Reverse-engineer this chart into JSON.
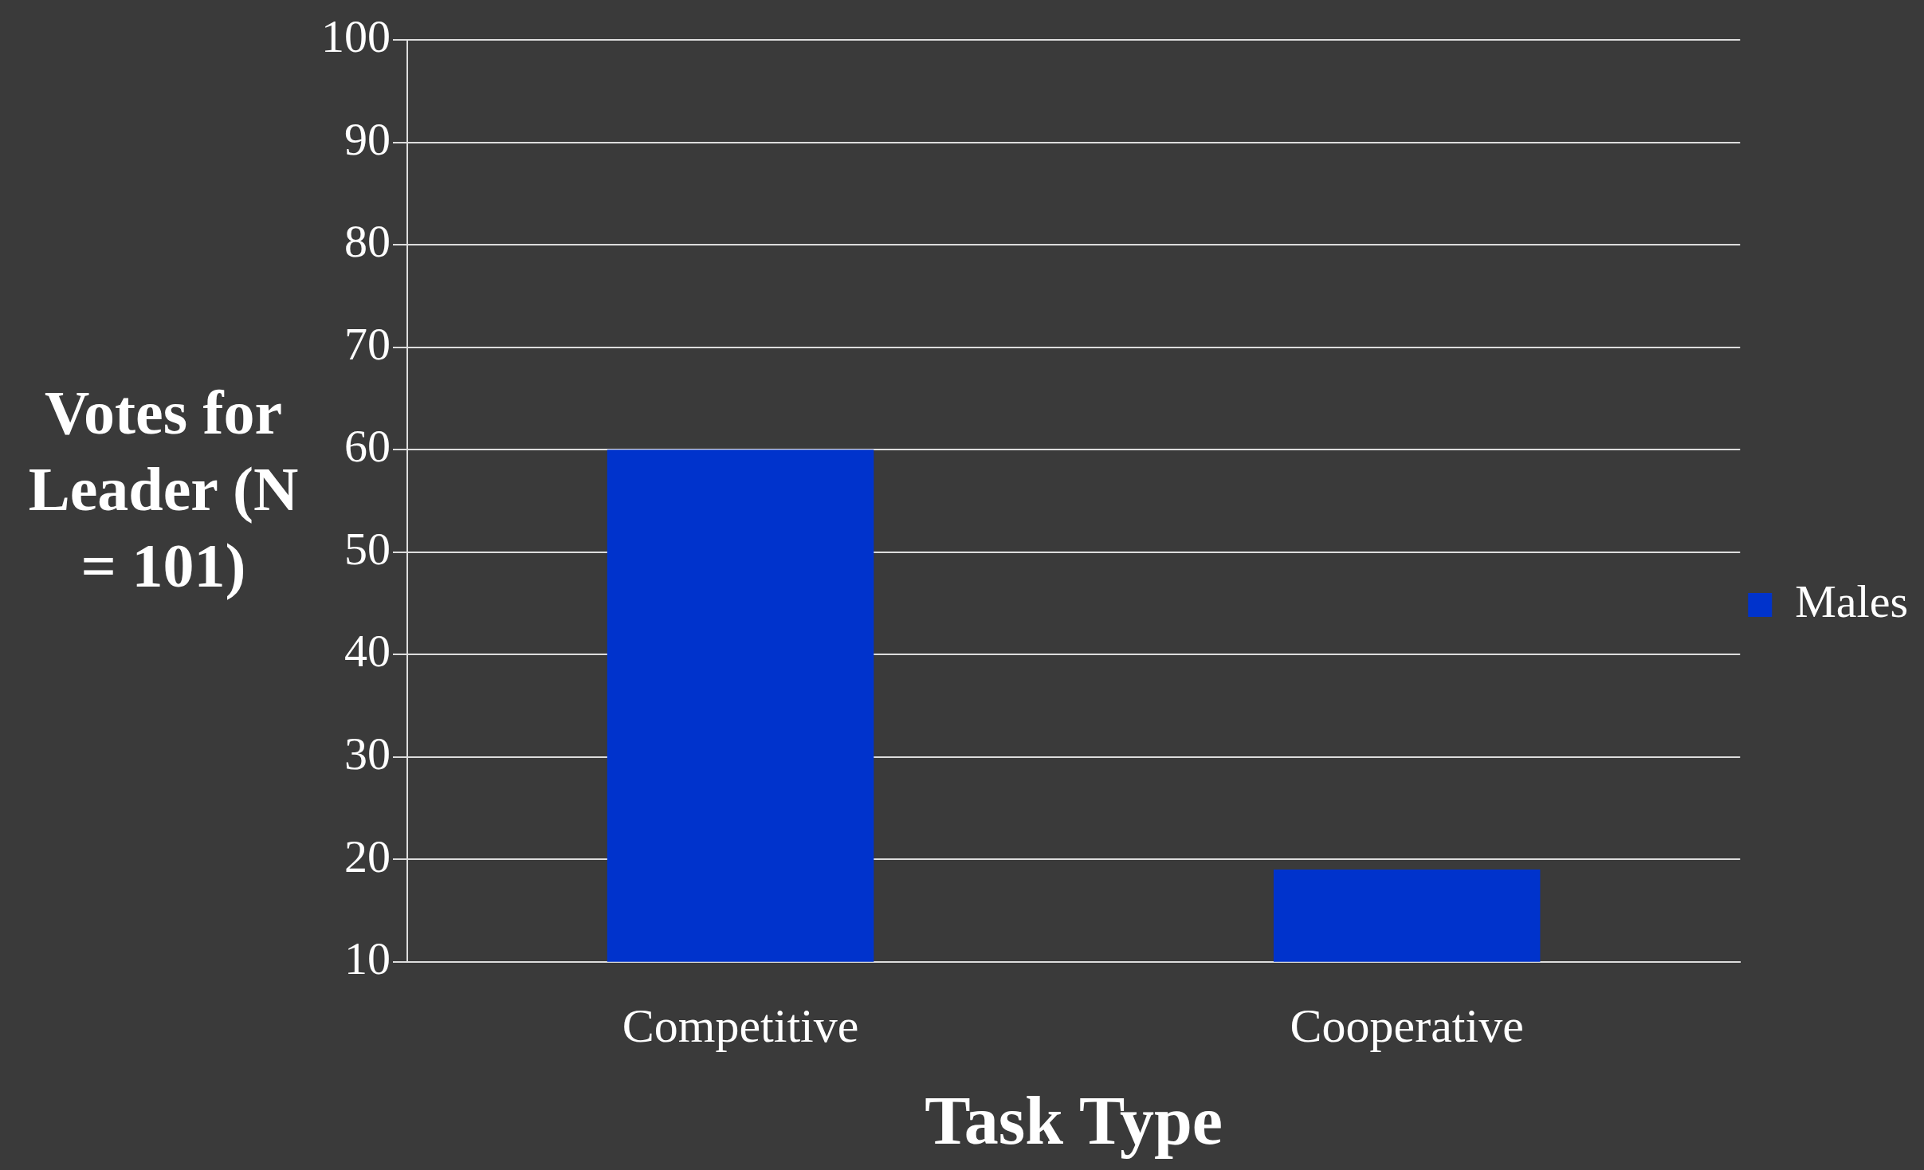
{
  "chart_data": {
    "type": "bar",
    "xlabel": "Task Type",
    "ylabel": "Votes for Leader (N = 101)",
    "categories": [
      "Competitive",
      "Cooperative"
    ],
    "series": [
      {
        "name": "Males",
        "color": "#0033cc",
        "values": [
          60,
          19
        ]
      }
    ],
    "ylim": [
      10,
      100
    ],
    "yticks": [
      10,
      20,
      30,
      40,
      50,
      60,
      70,
      80,
      90,
      100
    ],
    "grid": "y",
    "legend": "right"
  }
}
